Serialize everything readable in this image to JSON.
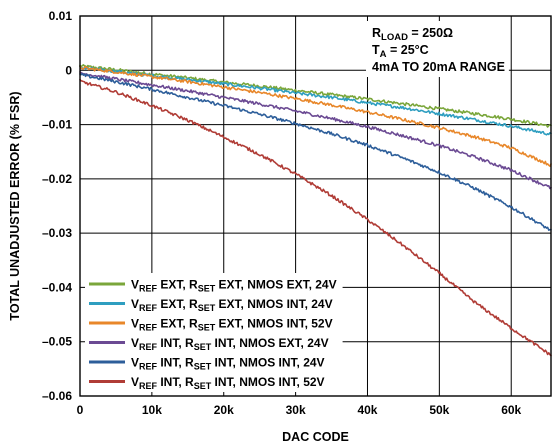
{
  "chart_data": {
    "type": "line",
    "xlabel": "DAC CODE",
    "ylabel": "TOTAL UNADJUSTED ERROR (% FSR)",
    "xlim": [
      0,
      65535
    ],
    "ylim": [
      -0.06,
      0.01
    ],
    "x_ticks": [
      0,
      10000,
      20000,
      30000,
      40000,
      50000,
      60000
    ],
    "x_tick_labels": [
      "0",
      "10k",
      "20k",
      "30k",
      "40k",
      "50k",
      "60k"
    ],
    "y_ticks": [
      0.01,
      0,
      -0.01,
      -0.02,
      -0.03,
      -0.04,
      -0.05,
      -0.06
    ],
    "y_tick_labels": [
      "0.01",
      "0",
      "–0.01",
      "–0.02",
      "–0.03",
      "–0.04",
      "–0.05",
      "–0.06"
    ],
    "grid": true,
    "legend_position": "bottom-left",
    "annotations": [
      {
        "main": "R",
        "sub": "LOAD",
        "rest": " = 250Ω"
      },
      {
        "main": "T",
        "sub": "A",
        "rest": " = 25°C"
      },
      {
        "main": "4mA TO 20mA RANGE",
        "sub": "",
        "rest": ""
      }
    ],
    "x": [
      0,
      5000,
      10000,
      15000,
      20000,
      25000,
      30000,
      35000,
      40000,
      45000,
      50000,
      55000,
      60000,
      65535
    ],
    "series": [
      {
        "label_parts": [
          "V",
          "REF",
          " EXT, R",
          "SET",
          " EXT, NMOS EXT, 24V"
        ],
        "color": "#7aa63a",
        "values": [
          0.0008,
          0.0001,
          -0.0007,
          -0.0014,
          -0.0022,
          -0.0029,
          -0.0037,
          -0.0045,
          -0.0053,
          -0.0062,
          -0.0071,
          -0.008,
          -0.009,
          -0.0103
        ]
      },
      {
        "label_parts": [
          "V",
          "REF",
          " EXT, R",
          "SET",
          " EXT, NMOS INT, 24V"
        ],
        "color": "#2e9ec0",
        "values": [
          0.0005,
          -0.0002,
          -0.001,
          -0.0017,
          -0.0025,
          -0.0033,
          -0.0042,
          -0.005,
          -0.006,
          -0.0069,
          -0.008,
          -0.0091,
          -0.0103,
          -0.0118
        ]
      },
      {
        "label_parts": [
          "V",
          "REF",
          " EXT, R",
          "SET",
          " EXT, NMOS INT, 52V"
        ],
        "color": "#e8872a",
        "values": [
          0.0005,
          -0.0003,
          -0.0012,
          -0.0021,
          -0.0031,
          -0.0041,
          -0.0052,
          -0.0064,
          -0.0077,
          -0.0091,
          -0.0106,
          -0.0123,
          -0.0143,
          -0.0175
        ]
      },
      {
        "label_parts": [
          "V",
          "REF",
          " INT, R",
          "SET",
          " INT, NMOS EXT, 24V"
        ],
        "color": "#6b4a93",
        "values": [
          -0.0005,
          -0.0016,
          -0.0027,
          -0.0038,
          -0.005,
          -0.0062,
          -0.0075,
          -0.0089,
          -0.0104,
          -0.0121,
          -0.0139,
          -0.016,
          -0.0184,
          -0.0217
        ]
      },
      {
        "label_parts": [
          "V",
          "REF",
          " INT, R",
          "SET",
          " INT, NMOS INT, 24V"
        ],
        "color": "#2d5e9a",
        "values": [
          -0.0008,
          -0.0021,
          -0.0035,
          -0.005,
          -0.0065,
          -0.0081,
          -0.0098,
          -0.0117,
          -0.0138,
          -0.0162,
          -0.0188,
          -0.0218,
          -0.0252,
          -0.0295
        ]
      },
      {
        "label_parts": [
          "V",
          "REF",
          " INT, R",
          "SET",
          " INT, NMOS INT, 52V"
        ],
        "color": "#b03c36",
        "values": [
          -0.002,
          -0.004,
          -0.0065,
          -0.0092,
          -0.0123,
          -0.0155,
          -0.0191,
          -0.0231,
          -0.0275,
          -0.0323,
          -0.0374,
          -0.0428,
          -0.0475,
          -0.0525
        ]
      }
    ]
  }
}
